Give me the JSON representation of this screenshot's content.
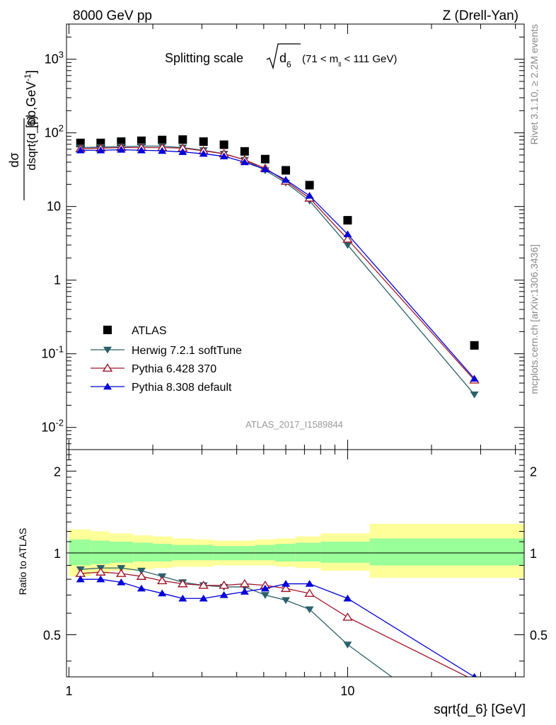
{
  "header": {
    "left": "8000 GeV pp",
    "right": "Z (Drell-Yan)"
  },
  "main_panel": {
    "title_prefix": "Splitting scale",
    "title_symbol": "d",
    "title_symbol_sub": "6",
    "title_range_prefix": "(71 < m",
    "title_range_sub": "ll",
    "title_range_suffix": " < 111 GeV)",
    "ylabel_num": "dσ",
    "ylabel_den": "dsqrt{d_6}",
    "ylabel_unit": "[pb,GeV",
    "ylabel_unit_exp": "-1",
    "ylabel_unit_close": "]",
    "analysis_id": "ATLAS_2017_I1589844"
  },
  "side_labels": {
    "top": "Rivet 3.1.10, ≥ 2.2M events",
    "bottom": "mcplots.cern.ch [arXiv:1306.3436]"
  },
  "ratio_panel": {
    "ylabel": "Ratio to ATLAS",
    "ytick_labels": [
      "0.5",
      "1",
      "2"
    ]
  },
  "xaxis": {
    "label": "sqrt{d_6} [GeV]",
    "tick_labels": [
      "1",
      "10"
    ]
  },
  "legend": [
    {
      "label": "ATLAS",
      "color": "#000000",
      "marker": "square"
    },
    {
      "label": "Herwig 7.2.1 softTune",
      "color": "#2a6069",
      "marker": "triangle-down"
    },
    {
      "label": "Pythia 6.428 370",
      "color": "#a0182e",
      "marker": "triangle-up-open"
    },
    {
      "label": "Pythia 8.308 default",
      "color": "#0000d8",
      "marker": "triangle-up"
    }
  ],
  "chart_data": {
    "type": "scatter",
    "xscale": "log",
    "yscale": "log",
    "xlim": [
      0.98,
      43
    ],
    "ylim": [
      0.005,
      3000
    ],
    "ratio_ylim": [
      0.35,
      2.4
    ],
    "xlabel": "sqrt{d_6} [GeV]",
    "ylabel": "dσ/dsqrt{d_6} [pb,GeV^-1]",
    "x": [
      1.1,
      1.3,
      1.54,
      1.82,
      2.16,
      2.56,
      3.04,
      3.6,
      4.27,
      5.06,
      6.0,
      7.3,
      10.0,
      28.5
    ],
    "uncertainty_band": {
      "x_edges": [
        1.0,
        1.2,
        1.4,
        1.7,
        2.0,
        2.35,
        2.8,
        3.3,
        3.95,
        4.65,
        5.5,
        6.5,
        8.0,
        12.0,
        43.0
      ],
      "total_lo": [
        0.82,
        0.84,
        0.86,
        0.87,
        0.88,
        0.89,
        0.89,
        0.9,
        0.9,
        0.9,
        0.89,
        0.88,
        0.86,
        0.81
      ],
      "total_hi": [
        1.22,
        1.2,
        1.18,
        1.16,
        1.15,
        1.13,
        1.12,
        1.11,
        1.11,
        1.12,
        1.13,
        1.15,
        1.18,
        1.28
      ],
      "stat_lo": [
        0.9,
        0.91,
        0.92,
        0.93,
        0.93,
        0.94,
        0.94,
        0.94,
        0.94,
        0.94,
        0.93,
        0.93,
        0.92,
        0.9
      ],
      "stat_hi": [
        1.12,
        1.11,
        1.1,
        1.09,
        1.08,
        1.07,
        1.07,
        1.06,
        1.06,
        1.07,
        1.08,
        1.09,
        1.1,
        1.13
      ]
    },
    "series": [
      {
        "name": "ATLAS",
        "values": [
          73,
          73,
          76,
          78,
          80,
          81,
          76,
          69,
          56,
          44,
          31,
          19.5,
          6.5,
          0.13
        ]
      },
      {
        "name": "Herwig 7.2.1 softTune",
        "values": [
          63,
          64,
          65,
          66,
          66,
          63,
          58,
          52,
          43,
          31,
          21,
          12,
          3.0,
          0.028
        ]
      },
      {
        "name": "Pythia 6.428 370",
        "values": [
          61,
          62,
          63,
          63,
          63,
          62,
          57,
          52,
          43,
          33,
          22,
          13,
          3.6,
          0.044
        ]
      },
      {
        "name": "Pythia 8.308 default",
        "values": [
          58,
          58,
          59,
          58,
          57,
          55,
          52,
          48,
          40,
          32,
          23,
          14,
          4.2,
          0.046
        ]
      }
    ],
    "ratio_series": [
      {
        "name": "Herwig 7.2.1 softTune",
        "values": [
          0.87,
          0.88,
          0.88,
          0.86,
          0.82,
          0.78,
          0.76,
          0.75,
          0.75,
          0.7,
          0.67,
          0.62,
          0.46,
          0.21
        ]
      },
      {
        "name": "Pythia 6.428 370",
        "values": [
          0.84,
          0.85,
          0.84,
          0.82,
          0.79,
          0.77,
          0.76,
          0.76,
          0.77,
          0.76,
          0.74,
          0.71,
          0.58,
          0.34
        ]
      },
      {
        "name": "Pythia 8.308 default",
        "values": [
          0.8,
          0.8,
          0.78,
          0.74,
          0.71,
          0.68,
          0.68,
          0.7,
          0.72,
          0.74,
          0.77,
          0.77,
          0.68,
          0.35
        ]
      }
    ]
  }
}
